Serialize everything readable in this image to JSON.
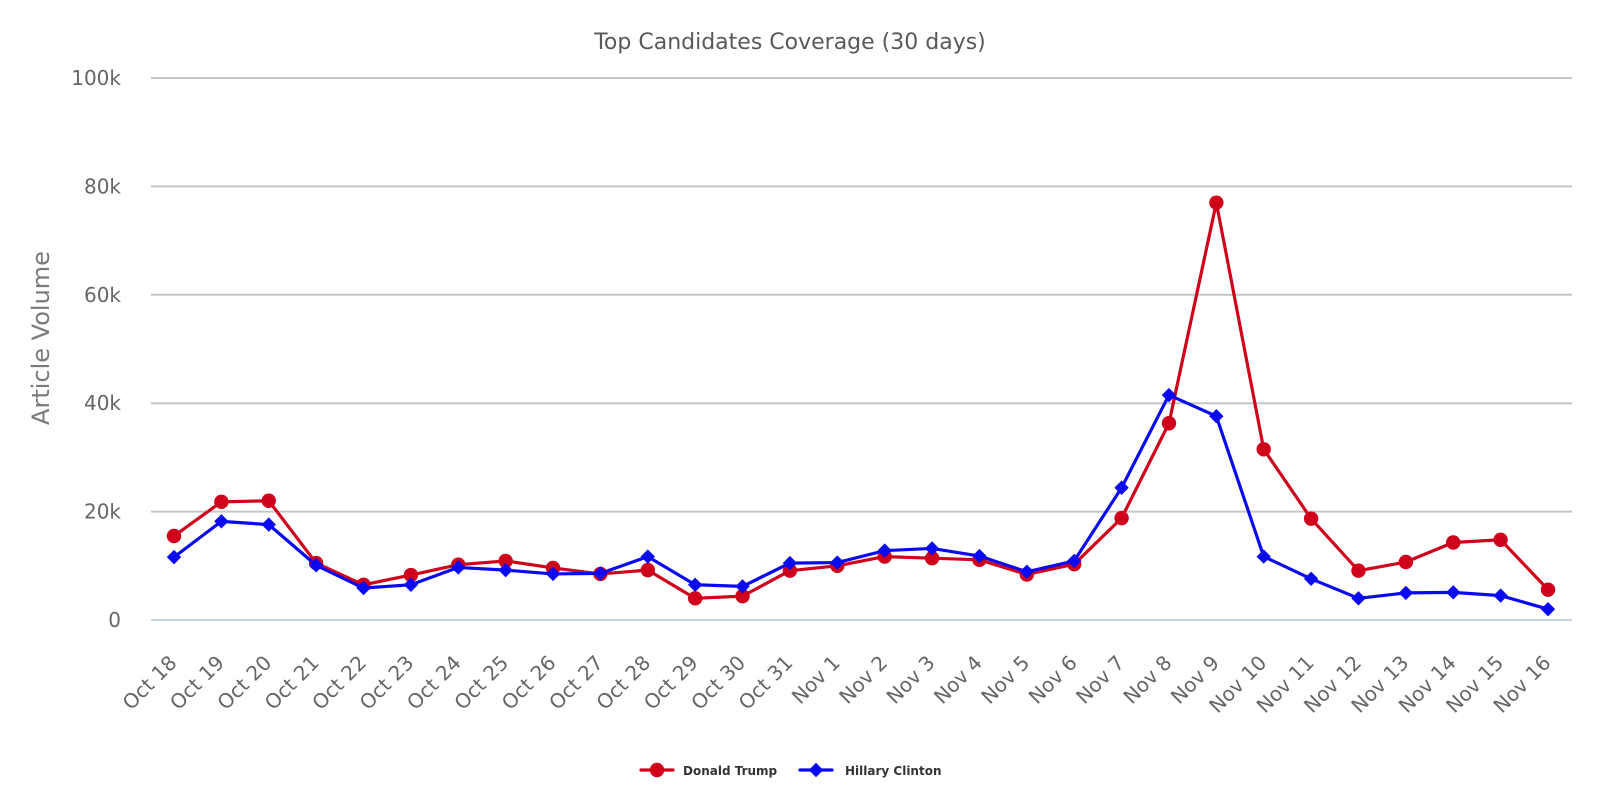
{
  "chart_data": {
    "type": "line",
    "title": "Top Candidates Coverage (30 days)",
    "xlabel": "",
    "ylabel": "Article Volume",
    "ylim": [
      0,
      100000
    ],
    "y_ticks": [
      0,
      20000,
      40000,
      60000,
      80000,
      100000
    ],
    "y_tick_labels": [
      "0",
      "20k",
      "40k",
      "60k",
      "80k",
      "100k"
    ],
    "grid": true,
    "legend_position": "bottom-center",
    "categories": [
      "Oct 18",
      "Oct 19",
      "Oct 20",
      "Oct 21",
      "Oct 22",
      "Oct 23",
      "Oct 24",
      "Oct 25",
      "Oct 26",
      "Oct 27",
      "Oct 28",
      "Oct 29",
      "Oct 30",
      "Oct 31",
      "Nov 1",
      "Nov 2",
      "Nov 3",
      "Nov 4",
      "Nov 5",
      "Nov 6",
      "Nov 7",
      "Nov 8",
      "Nov 9",
      "Nov 10",
      "Nov 11",
      "Nov 12",
      "Nov 13",
      "Nov 14",
      "Nov 15",
      "Nov 16"
    ],
    "series": [
      {
        "name": "Donald Trump",
        "color": "#d0021b",
        "marker": "circle",
        "values": [
          15500,
          21800,
          22000,
          10500,
          6500,
          8300,
          10200,
          10900,
          9600,
          8500,
          9200,
          4000,
          4400,
          9100,
          10000,
          11700,
          11400,
          11100,
          8400,
          10300,
          18800,
          36300,
          77000,
          31500,
          18700,
          9100,
          10700,
          14300,
          14800,
          5600
        ]
      },
      {
        "name": "Hillary Clinton",
        "color": "#0a0af0",
        "marker": "diamond",
        "values": [
          11600,
          18200,
          17600,
          10100,
          5900,
          6500,
          9700,
          9200,
          8500,
          8600,
          11700,
          6500,
          6200,
          10500,
          10600,
          12800,
          13200,
          11800,
          8900,
          10900,
          24400,
          41500,
          37600,
          11700,
          7600,
          4000,
          5000,
          5100,
          4500,
          2000
        ]
      }
    ]
  }
}
